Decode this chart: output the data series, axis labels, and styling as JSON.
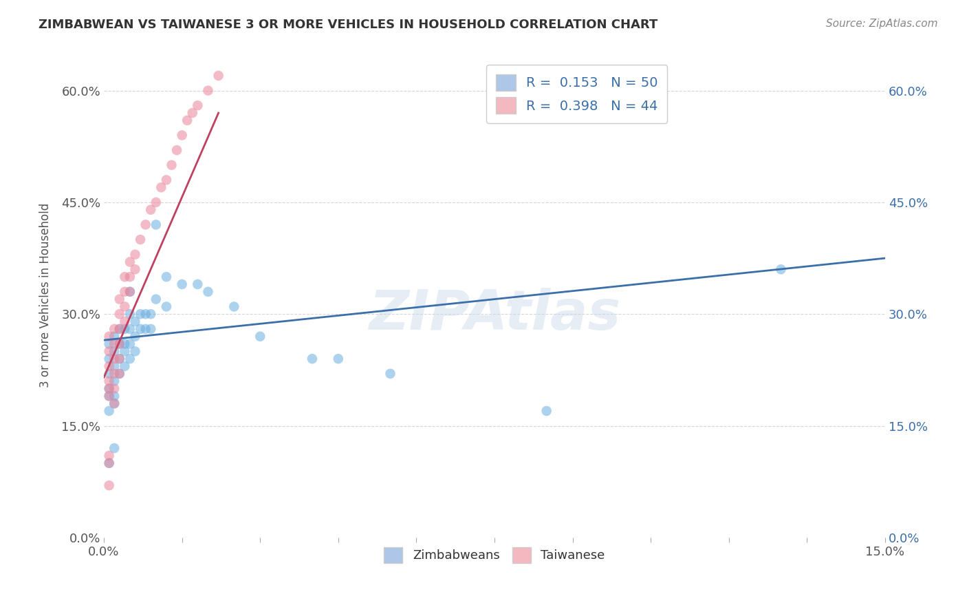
{
  "title": "ZIMBABWEAN VS TAIWANESE 3 OR MORE VEHICLES IN HOUSEHOLD CORRELATION CHART",
  "source": "Source: ZipAtlas.com",
  "ylabel": "3 or more Vehicles in Household",
  "watermark": "ZIPAtlas",
  "xmin": 0.0,
  "xmax": 0.15,
  "ymin": 0.0,
  "ymax": 0.65,
  "yticks": [
    0.0,
    0.15,
    0.3,
    0.45,
    0.6
  ],
  "ytick_labels": [
    "0.0%",
    "15.0%",
    "30.0%",
    "45.0%",
    "60.0%"
  ],
  "xticks": [
    0.0,
    0.015,
    0.03,
    0.045,
    0.06,
    0.075,
    0.09,
    0.105,
    0.12,
    0.135,
    0.15
  ],
  "xtick_labels_show": {
    "0.0": "0.0%",
    "0.15": "15.0%"
  },
  "zimbabwean_x": [
    0.001,
    0.001,
    0.001,
    0.001,
    0.001,
    0.001,
    0.001,
    0.002,
    0.002,
    0.002,
    0.002,
    0.002,
    0.002,
    0.002,
    0.003,
    0.003,
    0.003,
    0.003,
    0.004,
    0.004,
    0.004,
    0.004,
    0.005,
    0.005,
    0.005,
    0.005,
    0.005,
    0.006,
    0.006,
    0.006,
    0.007,
    0.007,
    0.008,
    0.008,
    0.009,
    0.009,
    0.01,
    0.01,
    0.012,
    0.012,
    0.015,
    0.018,
    0.02,
    0.025,
    0.03,
    0.04,
    0.045,
    0.055,
    0.085,
    0.13
  ],
  "zimbabwean_y": [
    0.26,
    0.24,
    0.22,
    0.2,
    0.19,
    0.17,
    0.1,
    0.27,
    0.25,
    0.23,
    0.21,
    0.19,
    0.18,
    0.12,
    0.28,
    0.26,
    0.24,
    0.22,
    0.28,
    0.26,
    0.25,
    0.23,
    0.33,
    0.3,
    0.28,
    0.26,
    0.24,
    0.29,
    0.27,
    0.25,
    0.3,
    0.28,
    0.3,
    0.28,
    0.3,
    0.28,
    0.42,
    0.32,
    0.35,
    0.31,
    0.34,
    0.34,
    0.33,
    0.31,
    0.27,
    0.24,
    0.24,
    0.22,
    0.17,
    0.36
  ],
  "taiwanese_x": [
    0.001,
    0.001,
    0.001,
    0.001,
    0.001,
    0.001,
    0.001,
    0.001,
    0.001,
    0.002,
    0.002,
    0.002,
    0.002,
    0.002,
    0.002,
    0.003,
    0.003,
    0.003,
    0.003,
    0.003,
    0.003,
    0.004,
    0.004,
    0.004,
    0.004,
    0.005,
    0.005,
    0.005,
    0.006,
    0.006,
    0.007,
    0.008,
    0.009,
    0.01,
    0.011,
    0.012,
    0.013,
    0.014,
    0.015,
    0.016,
    0.017,
    0.018,
    0.02,
    0.022
  ],
  "taiwanese_y": [
    0.27,
    0.25,
    0.23,
    0.21,
    0.2,
    0.19,
    0.11,
    0.1,
    0.07,
    0.28,
    0.26,
    0.24,
    0.22,
    0.2,
    0.18,
    0.32,
    0.3,
    0.28,
    0.26,
    0.24,
    0.22,
    0.35,
    0.33,
    0.31,
    0.29,
    0.37,
    0.35,
    0.33,
    0.38,
    0.36,
    0.4,
    0.42,
    0.44,
    0.45,
    0.47,
    0.48,
    0.5,
    0.52,
    0.54,
    0.56,
    0.57,
    0.58,
    0.6,
    0.62
  ],
  "zim_line_x": [
    0.0,
    0.15
  ],
  "zim_line_y": [
    0.265,
    0.375
  ],
  "tai_line_x": [
    0.0,
    0.022
  ],
  "tai_line_y": [
    0.215,
    0.57
  ],
  "dot_color_zim": "#6aaee0",
  "dot_color_tai": "#e8849a",
  "line_color_zim": "#3a6faa",
  "line_color_tai": "#c04060",
  "background_color": "#ffffff",
  "grid_color": "#cccccc",
  "legend_box_color_zim": "#aec6e8",
  "legend_box_color_tai": "#f4b8c1",
  "legend_text_color": "#3a6faa",
  "title_color": "#333333",
  "source_color": "#888888"
}
